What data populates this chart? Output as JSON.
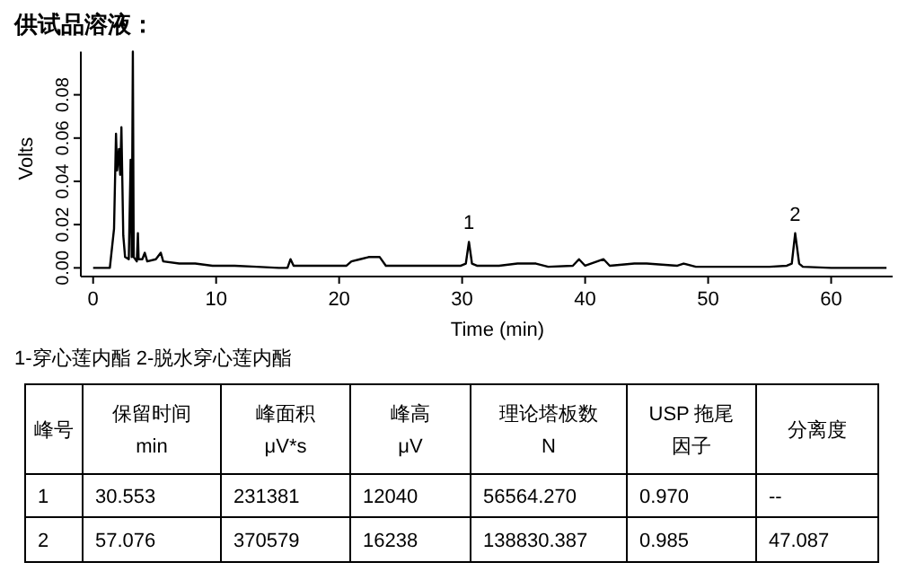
{
  "chart_data": [
    {
      "type": "line",
      "title": "供试品溶液：",
      "xlabel": "Time (min)",
      "ylabel": "Volts",
      "xlim": [
        -1,
        65
      ],
      "xticks": [
        0,
        10,
        20,
        30,
        40,
        50,
        60
      ],
      "ylim": [
        -0.004,
        0.1
      ],
      "yticks": [
        {
          "value": 0,
          "label": "0.00"
        },
        {
          "value": 0.02,
          "label": "0.02"
        },
        {
          "value": 0.04,
          "label": "0.04"
        },
        {
          "value": 0.06,
          "label": "0.06"
        },
        {
          "value": 0.08,
          "label": "0.08"
        }
      ],
      "series": [
        {
          "color": "#000000",
          "x": [
            0,
            1.36,
            1.7,
            1.86,
            1.95,
            2.1,
            2.2,
            2.3,
            2.45,
            2.6,
            2.9,
            3.05,
            3.14,
            3.23,
            3.3,
            3.55,
            3.64,
            3.7,
            4,
            4.2,
            4.4,
            5.1,
            5.5,
            5.7,
            7,
            8.3,
            9.7,
            11.5,
            13.3,
            15.1,
            15.8,
            16.05,
            16.3,
            20.6,
            21,
            21.7,
            22.4,
            23.3,
            23.8,
            25.1,
            27.9,
            29.9,
            30.3,
            30.553,
            30.8,
            31.2,
            33,
            34.5,
            36,
            37,
            39,
            39.5,
            40,
            41.5,
            42,
            44,
            45,
            47.5,
            48,
            49,
            55,
            56.4,
            56.8,
            57.076,
            57.4,
            57.7,
            60,
            64.5
          ],
          "values": [
            0,
            0,
            0.018,
            0.062,
            0.045,
            0.055,
            0.043,
            0.065,
            0.015,
            0.005,
            0.004,
            0.05,
            0.005,
            0.1,
            0.005,
            0.003,
            0.016,
            0.004,
            0.004,
            0.007,
            0.003,
            0.004,
            0.007,
            0.003,
            0.002,
            0.002,
            0.001,
            0.001,
            0.0005,
            0,
            0,
            0.004,
            0.001,
            0.001,
            0.003,
            0.004,
            0.005,
            0.005,
            0.001,
            0.001,
            0.001,
            0.001,
            0.002,
            0.012,
            0.002,
            0.001,
            0.001,
            0.002,
            0.002,
            0.0005,
            0.001,
            0.004,
            0.001,
            0.004,
            0.001,
            0.002,
            0.002,
            0.001,
            0.002,
            0.0005,
            0.0005,
            0.001,
            0.002,
            0.016,
            0.002,
            0.0005,
            0,
            0
          ]
        }
      ],
      "annotations": [
        {
          "text": "1",
          "x": 30.553,
          "y": 0.012
        },
        {
          "text": "2",
          "x": 57.076,
          "y": 0.016
        },
        "1-穿心莲内酯    2-脱水穿心莲内酯"
      ]
    },
    {
      "type": "other",
      "annotations": [
        "峰号",
        "保留时间\nmin",
        "峰面积\nμV*s",
        "峰高\nμV",
        "理论塔板数\nN",
        "USP 拖尾因子",
        "分离度",
        "1",
        "30.553",
        "231381",
        "12040",
        "56564.270",
        "0.970",
        "--",
        "2",
        "57.076",
        "370579",
        "16238",
        "138830.387",
        "0.985",
        "47.087"
      ]
    }
  ]
}
